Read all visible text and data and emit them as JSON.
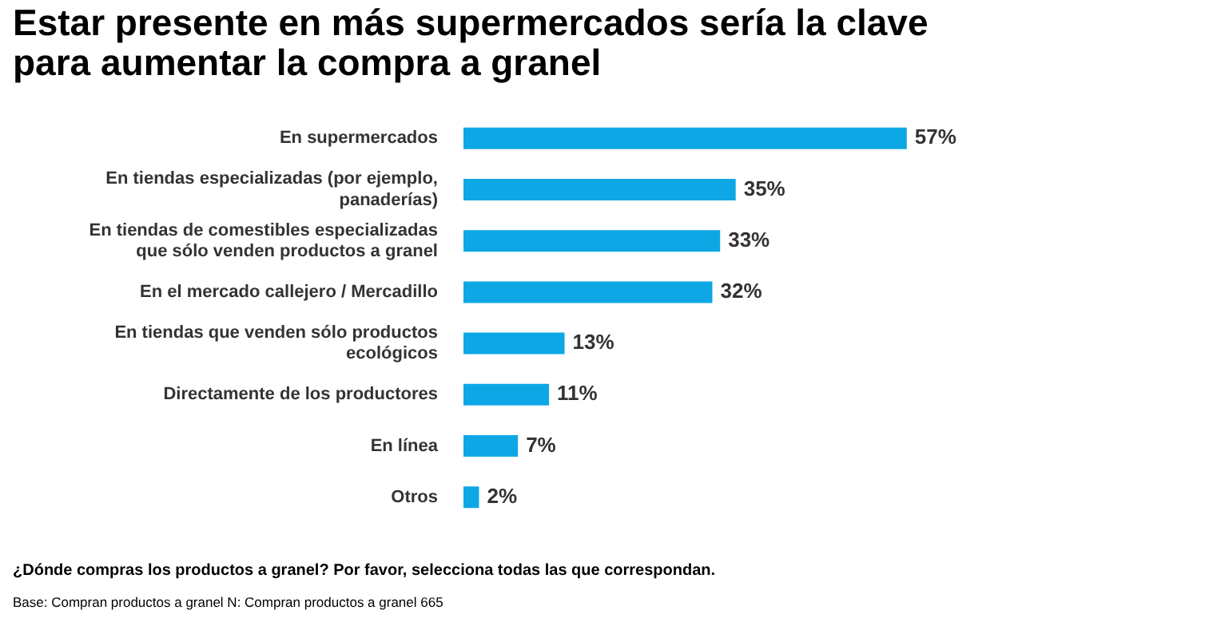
{
  "chart_data": {
    "type": "bar",
    "orientation": "horizontal",
    "title": "Estar presente en más supermercados sería la clave para aumentar la compra a granel",
    "categories": [
      "En supermercados",
      "En tiendas especializadas (por ejemplo, panaderías)",
      "En tiendas de comestibles especializadas que sólo venden productos a granel",
      "En el mercado callejero / Mercadillo",
      "En tiendas que venden sólo productos ecológicos",
      "Directamente de los productores",
      "En línea",
      "Otros"
    ],
    "values": [
      57,
      35,
      33,
      32,
      13,
      11,
      7,
      2
    ],
    "value_labels": [
      "57%",
      "35%",
      "33%",
      "32%",
      "13%",
      "11%",
      "7%",
      "2%"
    ],
    "color": "#0ea7e6",
    "tick_labels": "y",
    "legend": false,
    "annotations": [
      "¿Dónde compras los productos a granel?   Por favor, selecciona todas las que correspondan.",
      "Base: Compran productos a granel N: Compran productos a granel 665"
    ]
  }
}
